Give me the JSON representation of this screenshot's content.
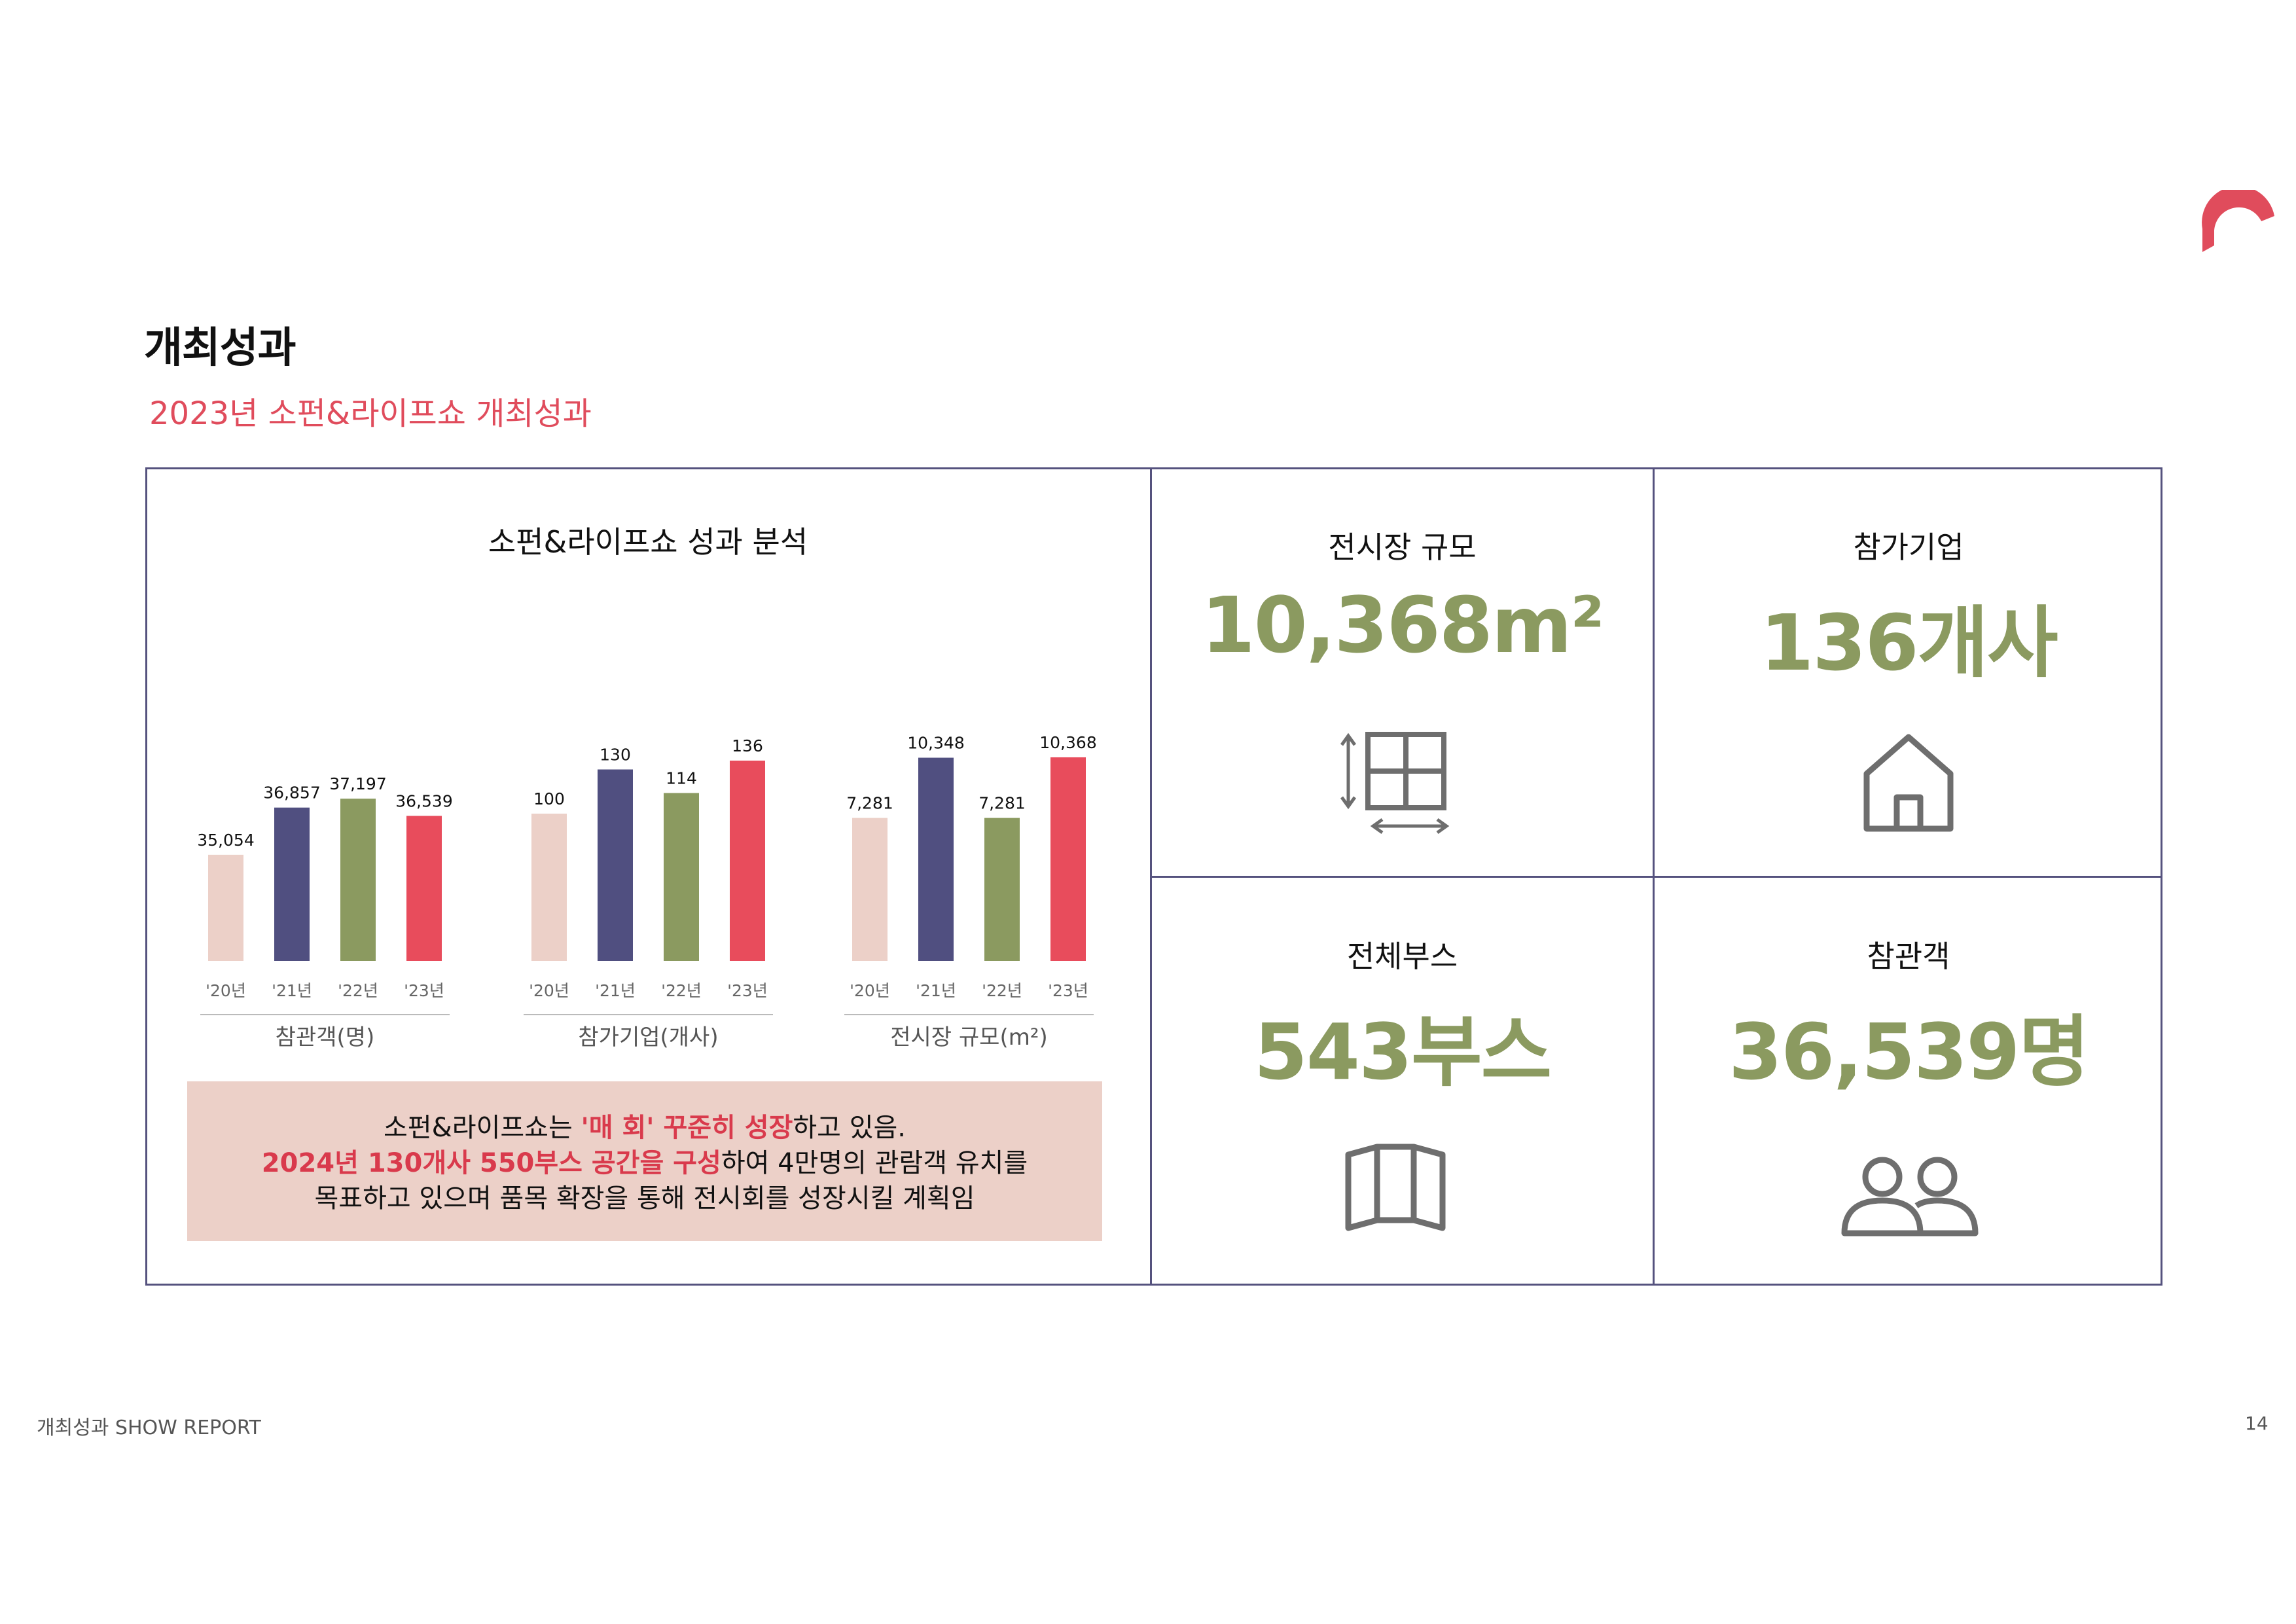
{
  "header": {
    "title": "개최성과",
    "subtitle": "2023년 소펀&라이프쇼 개최성과"
  },
  "chart_section": {
    "title": "소펀&라이프쇼 성과 분석"
  },
  "chart_data": [
    {
      "type": "bar",
      "xlabel": "참관객(명)",
      "categories": [
        "'20년",
        "'21년",
        "'22년",
        "'23년"
      ],
      "values": [
        35054,
        36857,
        37197,
        36539
      ],
      "value_labels": [
        "35,054",
        "36,857",
        "37,197",
        "36,539"
      ],
      "ylim": [
        31000,
        40000
      ],
      "colors": [
        "#ecd0c8",
        "#504f80",
        "#8b9a60",
        "#e84c5c"
      ]
    },
    {
      "type": "bar",
      "xlabel": "참가기업(개사)",
      "categories": [
        "'20년",
        "'21년",
        "'22년",
        "'23년"
      ],
      "values": [
        100,
        130,
        114,
        136
      ],
      "value_labels": [
        "100",
        "130",
        "114",
        "136"
      ],
      "ylim": [
        0,
        160
      ],
      "colors": [
        "#ecd0c8",
        "#504f80",
        "#8b9a60",
        "#e84c5c"
      ]
    },
    {
      "type": "bar",
      "xlabel": "전시장 규모(m²)",
      "categories": [
        "'20년",
        "'21년",
        "'22년",
        "'23년"
      ],
      "values": [
        7281,
        10348,
        7281,
        10368
      ],
      "value_labels": [
        "7,281",
        "10,348",
        "7,281",
        "10,368"
      ],
      "ylim": [
        0,
        12000
      ],
      "colors": [
        "#ecd0c8",
        "#504f80",
        "#8b9a60",
        "#e84c5c"
      ]
    }
  ],
  "note": {
    "line1_a": "소펀&라이프쇼는 ",
    "line1_hl": "'매 회' 꾸준히 성장",
    "line1_b": "하고 있음.",
    "line2_hl": "2024년 130개사 550부스 공간을 구성",
    "line2_b": "하여 4만명의 관람객 유치를",
    "line3": "목표하고 있으며 품목 확장을 통해 전시회를 성장시킬 계획임"
  },
  "stats": {
    "area": {
      "label": "전시장 규모",
      "value": "10,368m²",
      "icon": "floor-plan-icon"
    },
    "companies": {
      "label": "참가기업",
      "value": "136개사",
      "icon": "house-icon"
    },
    "booths": {
      "label": "전체부스",
      "value": "543부스",
      "icon": "booth-icon"
    },
    "visitors": {
      "label": "참관객",
      "value": "36,539명",
      "icon": "people-icon"
    }
  },
  "colors": {
    "accent_red": "#e04c5c",
    "stat_green": "#8b9a60",
    "frame": "#55527e",
    "note_bg": "#ecd0c8"
  },
  "footer": {
    "left": "개최성과 SHOW REPORT",
    "page": "14"
  }
}
